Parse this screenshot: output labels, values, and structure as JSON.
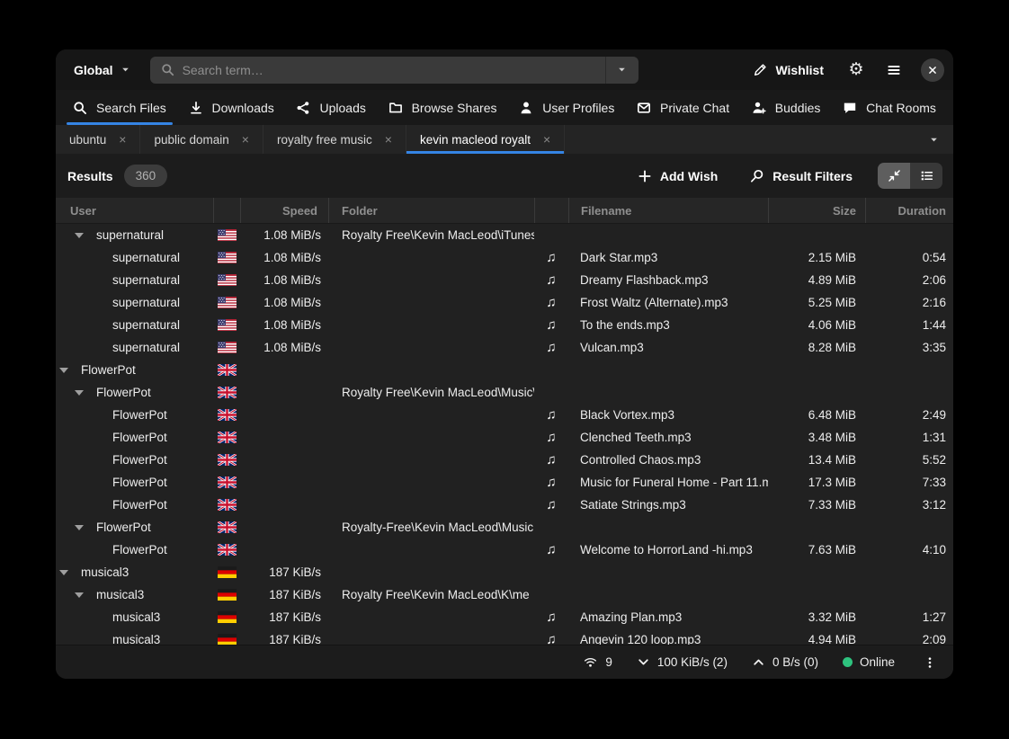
{
  "titlebar": {
    "scope_button": "Global",
    "search_placeholder": "Search term…",
    "wishlist_label": "Wishlist"
  },
  "main_tabs": [
    {
      "label": "Search Files",
      "icon": "search",
      "active": true
    },
    {
      "label": "Downloads",
      "icon": "download",
      "active": false
    },
    {
      "label": "Uploads",
      "icon": "share",
      "active": false
    },
    {
      "label": "Browse Shares",
      "icon": "folder",
      "active": false
    },
    {
      "label": "User Profiles",
      "icon": "person",
      "active": false
    },
    {
      "label": "Private Chat",
      "icon": "envelope",
      "active": false
    },
    {
      "label": "Buddies",
      "icon": "person-plus",
      "active": false
    },
    {
      "label": "Chat Rooms",
      "icon": "chat-bubble",
      "active": false
    }
  ],
  "search_tabs": [
    {
      "label": "ubuntu",
      "active": false
    },
    {
      "label": "public domain",
      "active": false
    },
    {
      "label": "royalty free music",
      "active": false
    },
    {
      "label": "kevin macleod royalt",
      "active": true
    }
  ],
  "results_toolbar": {
    "results_label": "Results",
    "results_count": "360",
    "add_wish_label": "Add Wish",
    "result_filters_label": "Result Filters"
  },
  "table": {
    "columns": {
      "user": "User",
      "speed": "Speed",
      "folder": "Folder",
      "filename": "Filename",
      "size": "Size",
      "duration": "Duration"
    },
    "rows": [
      {
        "indent": 2,
        "expander": true,
        "user": "supernatural",
        "flag": "us",
        "speed": "1.08 MiB/s",
        "folder": "Royalty Free\\Kevin MacLeod\\iTunes",
        "filename": "",
        "size": "",
        "duration": ""
      },
      {
        "indent": 3,
        "expander": false,
        "user": "supernatural",
        "flag": "us",
        "speed": "1.08 MiB/s",
        "folder": "",
        "filename": "Dark Star.mp3",
        "size": "2.15 MiB",
        "duration": "0:54"
      },
      {
        "indent": 3,
        "expander": false,
        "user": "supernatural",
        "flag": "us",
        "speed": "1.08 MiB/s",
        "folder": "",
        "filename": "Dreamy Flashback.mp3",
        "size": "4.89 MiB",
        "duration": "2:06"
      },
      {
        "indent": 3,
        "expander": false,
        "user": "supernatural",
        "flag": "us",
        "speed": "1.08 MiB/s",
        "folder": "",
        "filename": "Frost Waltz (Alternate).mp3",
        "size": "5.25 MiB",
        "duration": "2:16"
      },
      {
        "indent": 3,
        "expander": false,
        "user": "supernatural",
        "flag": "us",
        "speed": "1.08 MiB/s",
        "folder": "",
        "filename": "To the ends.mp3",
        "size": "4.06 MiB",
        "duration": "1:44"
      },
      {
        "indent": 3,
        "expander": false,
        "user": "supernatural",
        "flag": "us",
        "speed": "1.08 MiB/s",
        "folder": "",
        "filename": "Vulcan.mp3",
        "size": "8.28 MiB",
        "duration": "3:35"
      },
      {
        "indent": 1,
        "expander": true,
        "user": "FlowerPot",
        "flag": "gb",
        "speed": "",
        "folder": "",
        "filename": "",
        "size": "",
        "duration": ""
      },
      {
        "indent": 2,
        "expander": true,
        "user": "FlowerPot",
        "flag": "gb",
        "speed": "",
        "folder": "Royalty Free\\Kevin MacLeod\\Music\\",
        "filename": "",
        "size": "",
        "duration": ""
      },
      {
        "indent": 3,
        "expander": false,
        "user": "FlowerPot",
        "flag": "gb",
        "speed": "",
        "folder": "",
        "filename": "Black Vortex.mp3",
        "size": "6.48 MiB",
        "duration": "2:49"
      },
      {
        "indent": 3,
        "expander": false,
        "user": "FlowerPot",
        "flag": "gb",
        "speed": "",
        "folder": "",
        "filename": "Clenched Teeth.mp3",
        "size": "3.48 MiB",
        "duration": "1:31"
      },
      {
        "indent": 3,
        "expander": false,
        "user": "FlowerPot",
        "flag": "gb",
        "speed": "",
        "folder": "",
        "filename": "Controlled Chaos.mp3",
        "size": "13.4 MiB",
        "duration": "5:52"
      },
      {
        "indent": 3,
        "expander": false,
        "user": "FlowerPot",
        "flag": "gb",
        "speed": "",
        "folder": "",
        "filename": "Music for Funeral Home - Part 11.m",
        "size": "17.3 MiB",
        "duration": "7:33"
      },
      {
        "indent": 3,
        "expander": false,
        "user": "FlowerPot",
        "flag": "gb",
        "speed": "",
        "folder": "",
        "filename": "Satiate Strings.mp3",
        "size": "7.33 MiB",
        "duration": "3:12"
      },
      {
        "indent": 2,
        "expander": true,
        "user": "FlowerPot",
        "flag": "gb",
        "speed": "",
        "folder": "Royalty-Free\\Kevin MacLeod\\Music",
        "filename": "",
        "size": "",
        "duration": ""
      },
      {
        "indent": 3,
        "expander": false,
        "user": "FlowerPot",
        "flag": "gb",
        "speed": "",
        "folder": "",
        "filename": "Welcome to HorrorLand -hi.mp3",
        "size": "7.63 MiB",
        "duration": "4:10"
      },
      {
        "indent": 1,
        "expander": true,
        "user": "musical3",
        "flag": "de",
        "speed": "187 KiB/s",
        "folder": "",
        "filename": "",
        "size": "",
        "duration": ""
      },
      {
        "indent": 2,
        "expander": true,
        "user": "musical3",
        "flag": "de",
        "speed": "187 KiB/s",
        "folder": "Royalty Free\\Kevin MacLeod\\K\\me",
        "filename": "",
        "size": "",
        "duration": ""
      },
      {
        "indent": 3,
        "expander": false,
        "user": "musical3",
        "flag": "de",
        "speed": "187 KiB/s",
        "folder": "",
        "filename": "Amazing Plan.mp3",
        "size": "3.32 MiB",
        "duration": "1:27"
      },
      {
        "indent": 3,
        "expander": false,
        "user": "musical3",
        "flag": "de",
        "speed": "187 KiB/s",
        "folder": "",
        "filename": "Angevin 120 loop.mp3",
        "size": "4.94 MiB",
        "duration": "2:09"
      }
    ]
  },
  "status_bar": {
    "connections": "9",
    "download_rate": "100 KiB/s (2)",
    "upload_rate": "0 B/s (0)",
    "online_label": "Online"
  },
  "colors": {
    "accent": "#3584e4",
    "online_green": "#2ec27e"
  }
}
